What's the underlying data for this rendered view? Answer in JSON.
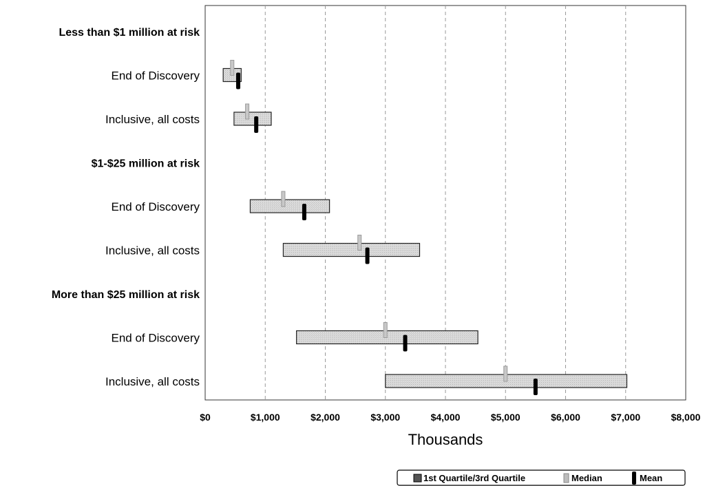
{
  "chart_data": {
    "type": "box-range",
    "xlabel": "Thousands",
    "xlim": [
      0,
      8000
    ],
    "x_ticks": [
      "$0",
      "$1,000",
      "$2,000",
      "$3,000",
      "$4,000",
      "$5,000",
      "$6,000",
      "$7,000",
      "$8,000"
    ],
    "grid": "vertical dashed",
    "rows": [
      {
        "label": "Less than $1 million at risk",
        "group": true
      },
      {
        "label": "End of Discovery",
        "q1": 300,
        "q3": 600,
        "median": 450,
        "mean": 550
      },
      {
        "label": "Inclusive, all costs",
        "q1": 480,
        "q3": 1100,
        "median": 700,
        "mean": 850
      },
      {
        "label": "$1-$25 million at risk",
        "group": true
      },
      {
        "label": "End of Discovery",
        "q1": 750,
        "q3": 2070,
        "median": 1300,
        "mean": 1650
      },
      {
        "label": "Inclusive, all costs",
        "q1": 1300,
        "q3": 3570,
        "median": 2570,
        "mean": 2700
      },
      {
        "label": "More than $25 million at risk",
        "group": true
      },
      {
        "label": "End of Discovery",
        "q1": 1520,
        "q3": 4540,
        "median": 3000,
        "mean": 3330
      },
      {
        "label": "Inclusive, all costs",
        "q1": 3000,
        "q3": 7020,
        "median": 5000,
        "mean": 5500
      }
    ],
    "legend": {
      "position": "bottom-right",
      "items": [
        "1st Quartile/3rd Quartile",
        "Median",
        "Mean"
      ]
    },
    "colors": {
      "box_fill": "#dadada",
      "box_stroke": "#222222",
      "median": "#9a9a9a",
      "mean": "#000000",
      "grid": "#999999"
    }
  }
}
